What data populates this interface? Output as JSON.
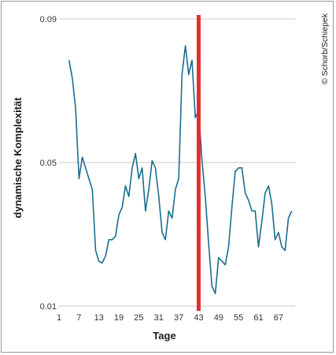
{
  "chart_data": {
    "type": "line",
    "xlabel": "Tage",
    "ylabel": "dynamische Komplexität",
    "xlim": [
      1,
      72
    ],
    "ylim": [
      0.01,
      0.09
    ],
    "x_ticks": [
      1,
      7,
      13,
      19,
      25,
      31,
      37,
      43,
      49,
      55,
      61,
      67
    ],
    "y_ticks": [
      {
        "value": 0.01,
        "label": "0.01"
      },
      {
        "value": 0.05,
        "label": "0.05"
      },
      {
        "value": 0.09,
        "label": "0.09"
      }
    ],
    "grid": "horizontal",
    "series": [
      {
        "color": "#1a6d8f",
        "x": [
          4,
          5,
          6,
          7,
          8,
          9,
          10,
          11,
          12,
          13,
          14,
          15,
          16,
          17,
          18,
          19,
          20,
          21,
          22,
          23,
          24,
          25,
          26,
          27,
          28,
          29,
          30,
          31,
          32,
          33,
          34,
          35,
          36,
          37,
          38,
          39,
          40,
          41,
          42,
          43,
          44,
          45,
          46,
          47,
          48,
          49,
          50,
          51,
          52,
          53,
          54,
          55,
          56,
          57,
          58,
          59,
          60,
          61,
          62,
          63,
          64,
          65,
          66,
          67,
          68,
          69,
          70,
          71
        ],
        "y": [
          0.0785,
          0.0735,
          0.065,
          0.0455,
          0.0515,
          0.0485,
          0.0455,
          0.0425,
          0.0255,
          0.0225,
          0.022,
          0.024,
          0.0285,
          0.0285,
          0.0295,
          0.0355,
          0.0375,
          0.0435,
          0.0405,
          0.0485,
          0.0525,
          0.0455,
          0.0485,
          0.0365,
          0.0425,
          0.0505,
          0.0485,
          0.0405,
          0.0305,
          0.0285,
          0.0365,
          0.0345,
          0.0425,
          0.0455,
          0.0745,
          0.0825,
          0.0745,
          0.0785,
          0.0625,
          0.0645,
          0.0505,
          0.0405,
          0.0275,
          0.0155,
          0.0135,
          0.0235,
          0.0225,
          0.0215,
          0.0265,
          0.0375,
          0.0475,
          0.0485,
          0.0485,
          0.0415,
          0.0395,
          0.0365,
          0.0365,
          0.0265,
          0.0335,
          0.0415,
          0.0435,
          0.0385,
          0.0285,
          0.0305,
          0.0265,
          0.0255,
          0.0345,
          0.0365
        ]
      }
    ],
    "marker_line": {
      "x": 43,
      "color": "#e03033"
    }
  },
  "credit": "© Schorb/Schiepek"
}
